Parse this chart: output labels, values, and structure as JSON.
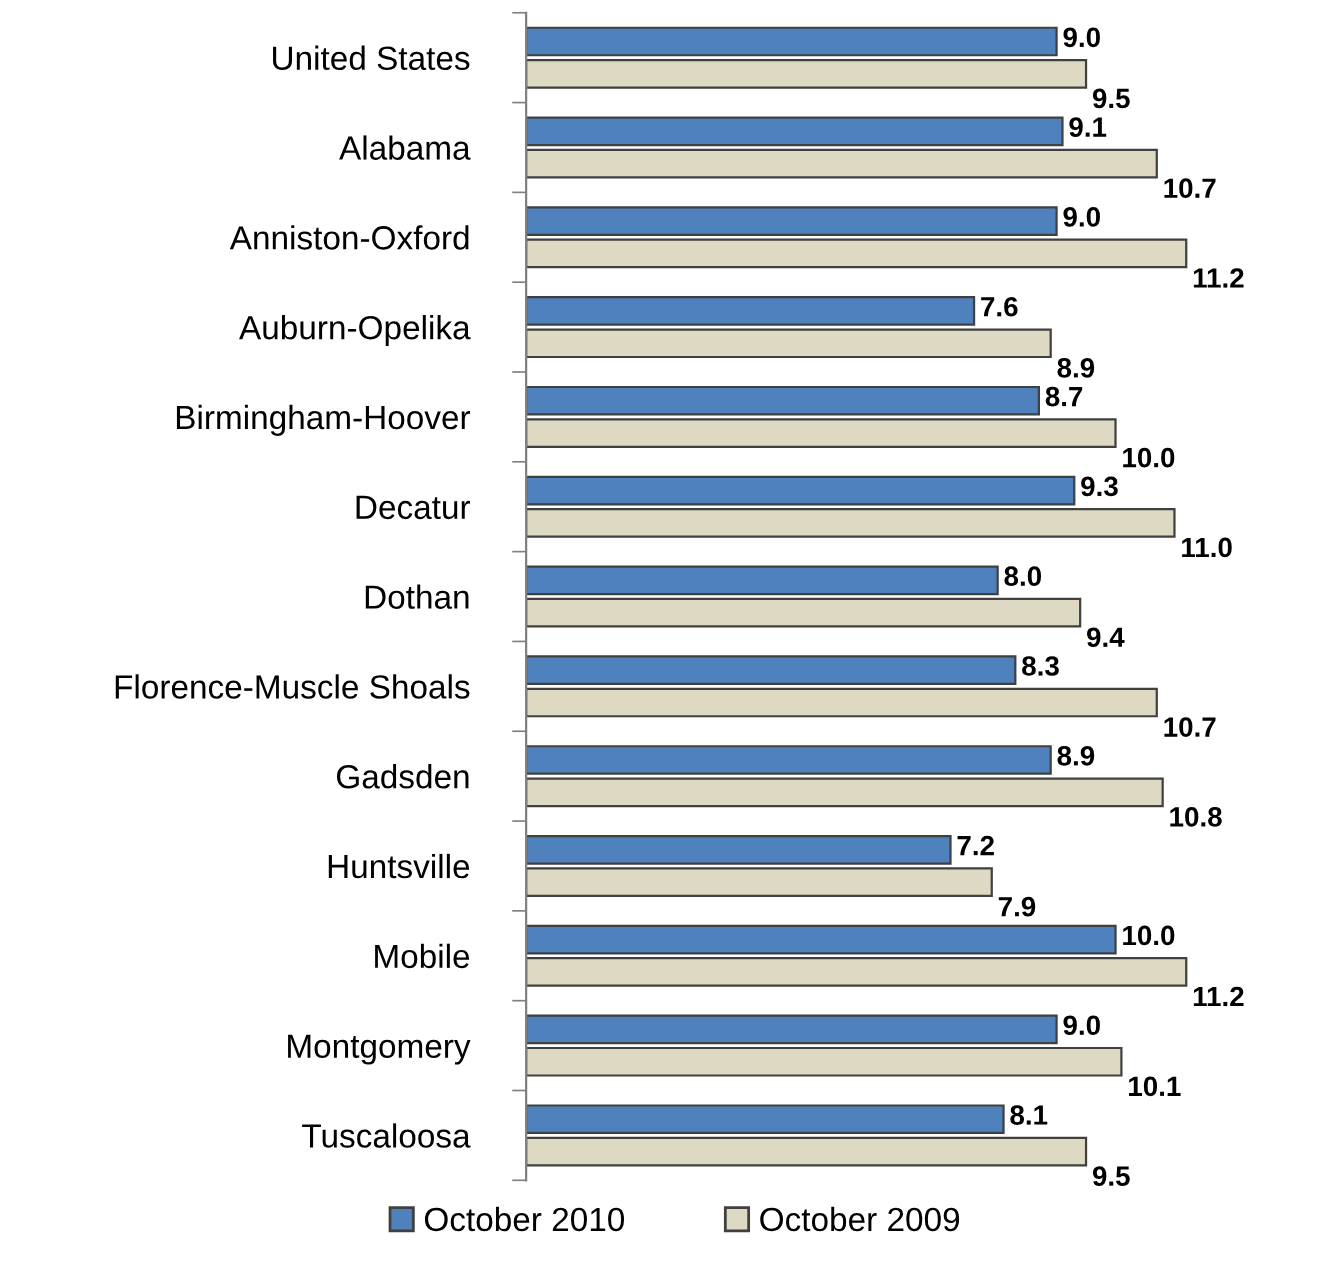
{
  "chart_data": {
    "type": "bar",
    "orientation": "horizontal",
    "legend": "bottom",
    "grid": false,
    "tick_labels": "y",
    "categories": [
      "United States",
      "Alabama",
      "Anniston-Oxford",
      "Auburn-Opelika",
      "Birmingham-Hoover",
      "Decatur",
      "Dothan",
      "Florence-Muscle Shoals",
      "Gadsden",
      "Huntsville",
      "Mobile",
      "Montgomery",
      "Tuscaloosa"
    ],
    "series": [
      {
        "name": "October 2010",
        "color": "#4f81bd",
        "values": [
          9.0,
          9.1,
          9.0,
          7.6,
          8.7,
          9.3,
          8.0,
          8.3,
          8.9,
          7.2,
          10.0,
          9.0,
          8.1
        ],
        "value_labels": [
          "9.0",
          "9.1",
          "9.0",
          "7.6",
          "8.7",
          "9.3",
          "8.0",
          "8.3",
          "8.9",
          "7.2",
          "10.0",
          "9.0",
          "8.1"
        ]
      },
      {
        "name": "October 2009",
        "color": "#ddd9c3",
        "values": [
          9.5,
          10.7,
          11.2,
          8.9,
          10.0,
          11.0,
          9.4,
          10.7,
          10.8,
          7.9,
          11.2,
          10.1,
          9.5
        ],
        "value_labels": [
          "9.5",
          "10.7",
          "11.2",
          "8.9",
          "10.0",
          "11.0",
          "9.4",
          "10.7",
          "10.8",
          "7.9",
          "11.2",
          "10.1",
          "9.5"
        ]
      }
    ]
  }
}
